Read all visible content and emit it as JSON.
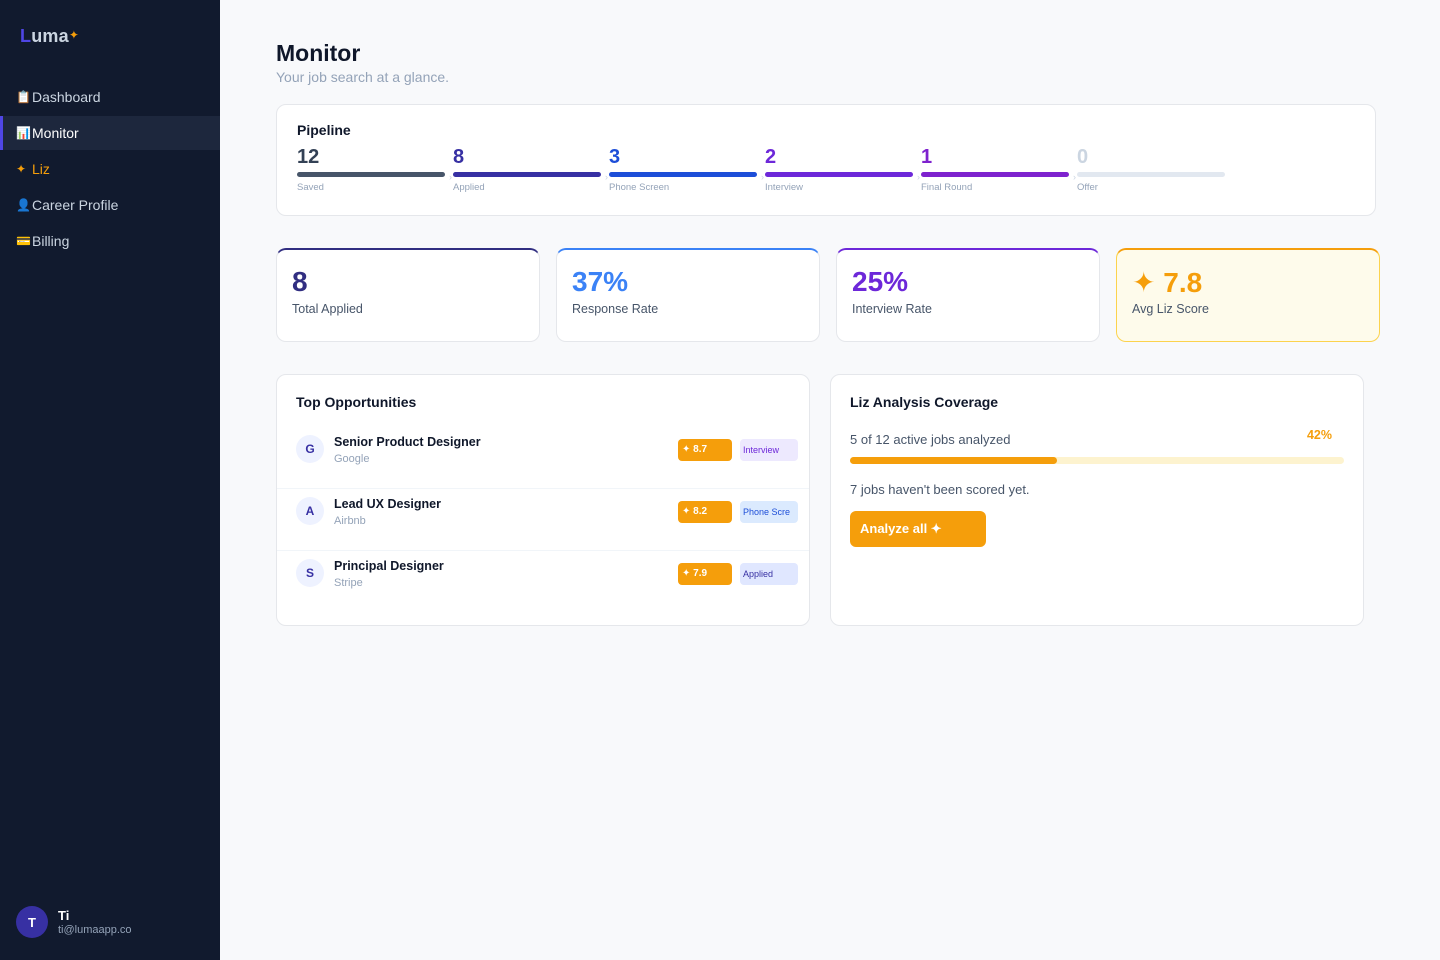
{
  "app": {
    "logo_first": "L",
    "logo_rest": "uma",
    "logo_spark": "✦"
  },
  "sidebar": {
    "items": [
      {
        "icon": "📋",
        "icon_name": "clipboard-icon",
        "label": "Dashboard",
        "active": false
      },
      {
        "icon": "📊",
        "icon_name": "chart-icon",
        "label": "Monitor",
        "active": true
      },
      {
        "icon": "✦",
        "icon_name": "sparkle-icon",
        "label": "Liz",
        "active": false
      },
      {
        "icon": "👤",
        "icon_name": "user-icon",
        "label": "Career Profile",
        "active": false
      },
      {
        "icon": "💳",
        "icon_name": "credit-card-icon",
        "label": "Billing",
        "active": false
      }
    ],
    "user": {
      "initial": "T",
      "name": "Ti",
      "email": "ti@lumaapp.co"
    }
  },
  "header": {
    "title": "Monitor",
    "subtitle": "Your job search at a glance."
  },
  "pipeline": {
    "title": "Pipeline",
    "stages": [
      {
        "count": "12",
        "label": "Saved",
        "color": "#475569",
        "count_color": "#334155"
      },
      {
        "count": "8",
        "label": "Applied",
        "color": "#3730a3",
        "count_color": "#3730a3"
      },
      {
        "count": "3",
        "label": "Phone Screen",
        "color": "#1d4ed8",
        "count_color": "#1d4ed8"
      },
      {
        "count": "2",
        "label": "Interview",
        "color": "#6d28d9",
        "count_color": "#6d28d9"
      },
      {
        "count": "1",
        "label": "Final Round",
        "color": "#7e22ce",
        "count_color": "#7e22ce"
      },
      {
        "count": "0",
        "label": "Offer",
        "color": "#e2e8f0",
        "count_color": "#cbd5e1"
      }
    ]
  },
  "stats": [
    {
      "value": "8",
      "label": "Total Applied",
      "accent": "#312e81",
      "value_color": "#312e81"
    },
    {
      "value": "37%",
      "label": "Response Rate",
      "accent": "#3b82f6",
      "value_color": "#3b82f6"
    },
    {
      "value": "25%",
      "label": "Interview Rate",
      "accent": "#6d28d9",
      "value_color": "#6d28d9"
    },
    {
      "value": "✦ 7.8",
      "label": "Avg Liz Score",
      "accent": "#f59e0b",
      "value_color": "#f59e0b"
    }
  ],
  "opportunities": {
    "title": "Top Opportunities",
    "items": [
      {
        "initial": "G",
        "title": "Senior Product Designer",
        "company": "Google",
        "score": "✦ 8.7",
        "status": "Interview",
        "status_bg": "#ede9fe",
        "status_color": "#6d28d9"
      },
      {
        "initial": "A",
        "title": "Lead UX Designer",
        "company": "Airbnb",
        "score": "✦ 8.2",
        "status": "Phone Scre",
        "status_bg": "#dbeafe",
        "status_color": "#1d4ed8"
      },
      {
        "initial": "S",
        "title": "Principal Designer",
        "company": "Stripe",
        "score": "✦ 7.9",
        "status": "Applied",
        "status_bg": "#e0e7ff",
        "status_color": "#3730a3"
      }
    ]
  },
  "coverage": {
    "title": "Liz Analysis Coverage",
    "summary": "5 of 12 active jobs analyzed",
    "percent_label": "42%",
    "progress": 0.42,
    "note": "7 jobs haven't been scored yet.",
    "button_label": "Analyze all ✦"
  }
}
